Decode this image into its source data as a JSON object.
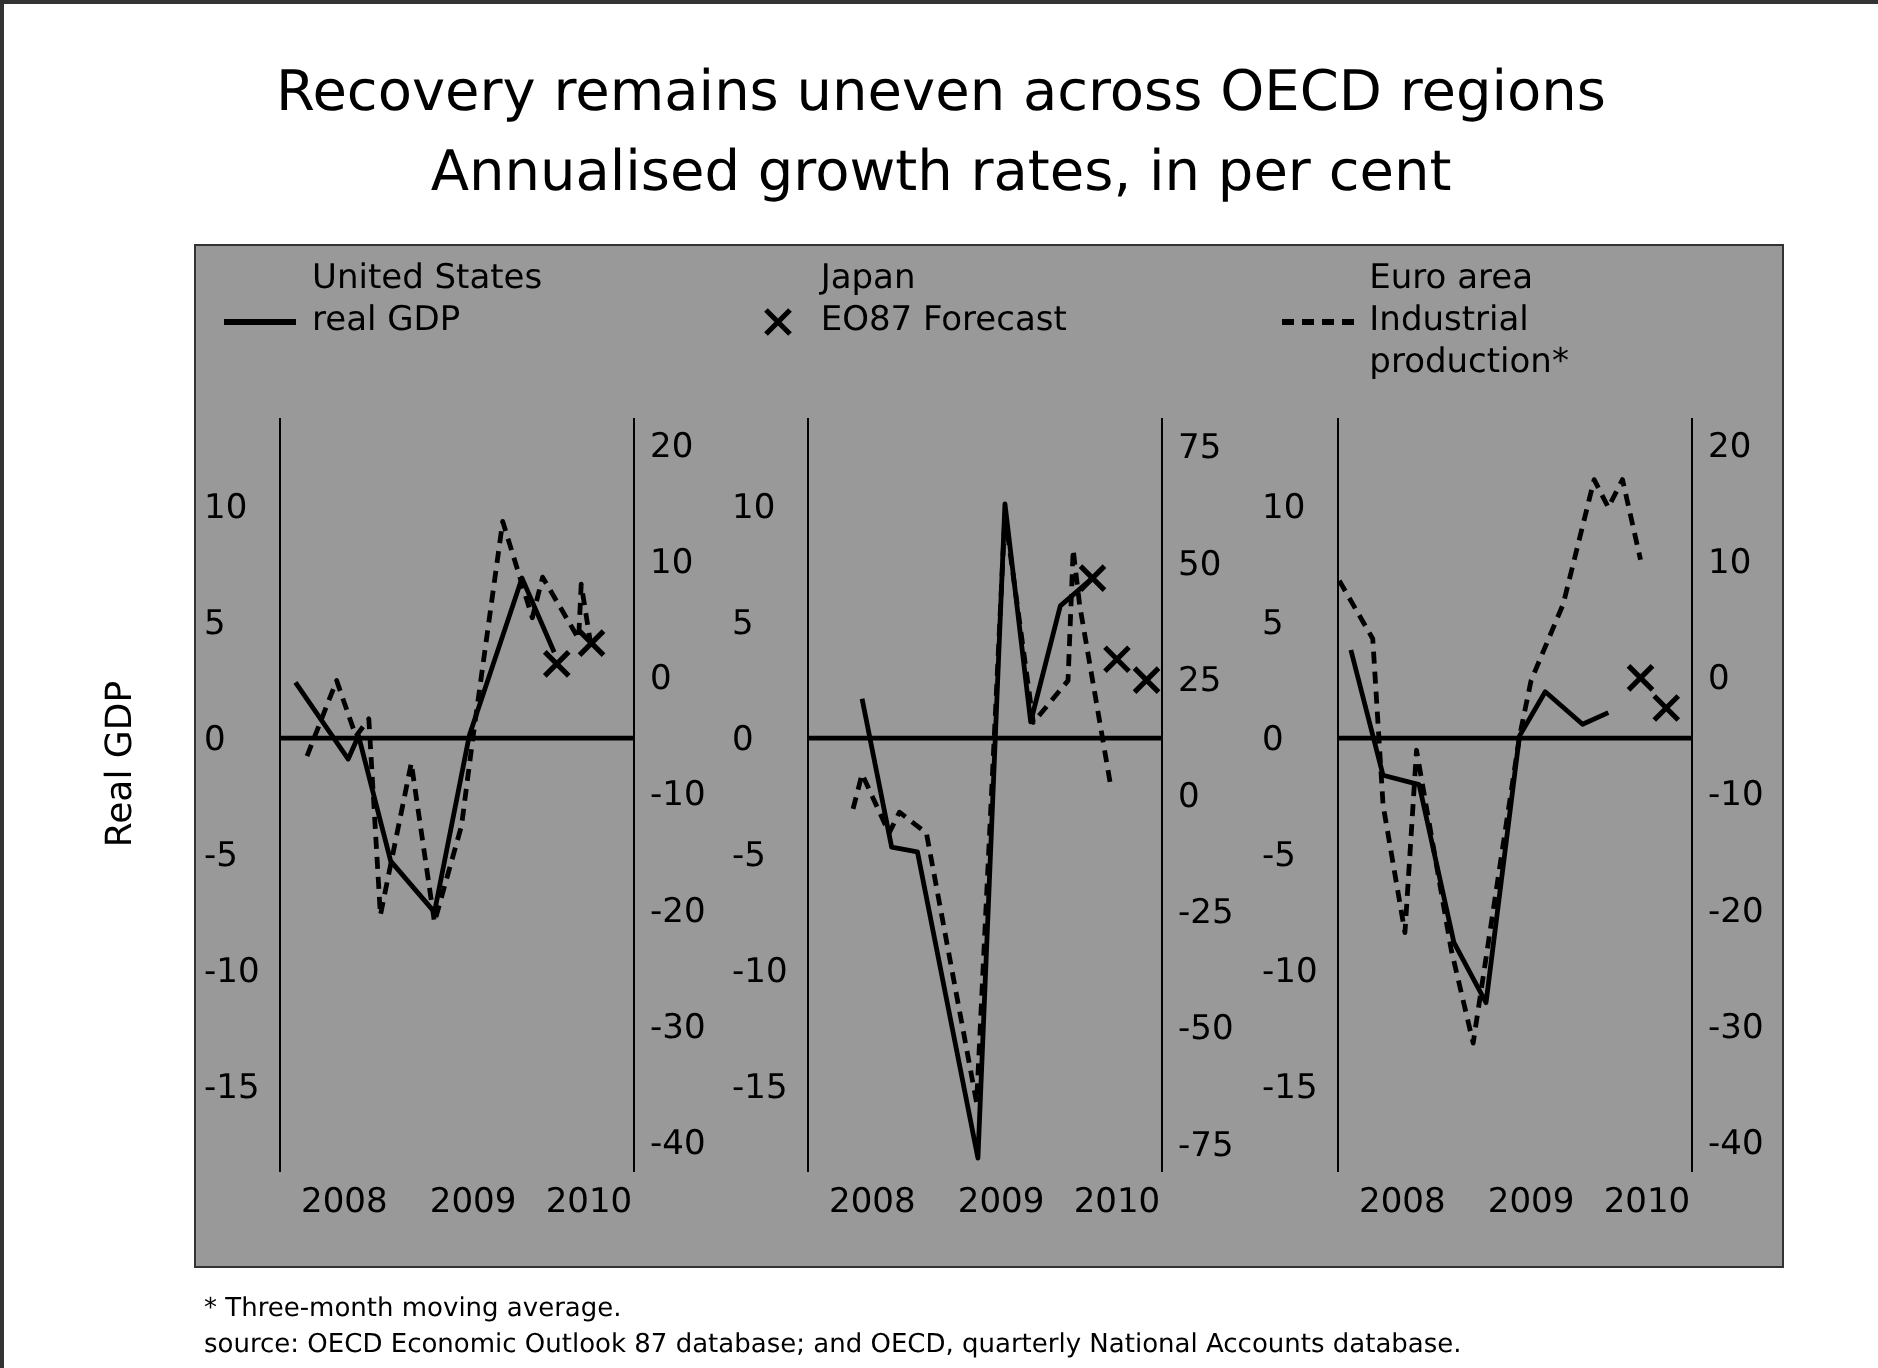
{
  "chart_data": [
    {
      "type": "line",
      "title": "Recovery remains uneven across OECD regions",
      "subtitle": "Annualised growth rates, in per cent",
      "ylabel": "Real GDP",
      "legend_title": "United States",
      "legend": "top",
      "xlim": [
        2008.0,
        2010.75
      ],
      "xticks": [
        {
          "value": 2008.5,
          "label": "2008"
        },
        {
          "value": 2009.5,
          "label": "2009"
        },
        {
          "value": 2010.4,
          "label": "2010"
        }
      ],
      "ylim": [
        -18.7,
        13.8
      ],
      "yticks": [
        10,
        5,
        0,
        -5,
        -10,
        -15
      ],
      "y2lim": [
        -42.6,
        22.3
      ],
      "y2ticks": [
        20,
        10,
        0,
        -10,
        -20,
        -30,
        -40
      ],
      "ref_lines": [
        {
          "axis": "y",
          "value": 0,
          "color": "#000000"
        }
      ],
      "annotations": [
        "* Three-month moving average.",
        "source: OECD Economic Outlook 87 database; and OECD, quarterly National Accounts database."
      ],
      "series": [
        {
          "name": "real GDP",
          "color": "#000000",
          "line_style": "solid",
          "x": [
            2008.12,
            2008.53,
            2008.61,
            2008.86,
            2009.2,
            2009.47,
            2009.88,
            2010.13
          ],
          "values": [
            2.4,
            -0.9,
            0.1,
            -5.3,
            -7.5,
            0.1,
            6.9,
            3.7
          ]
        },
        {
          "type": "scatter",
          "color": "#000000",
          "marker": "cross",
          "x": [
            2010.15,
            2010.42
          ],
          "values": [
            3.2,
            4.1
          ]
        },
        {
          "axis": "y2",
          "color": "#000000",
          "line_style": "dashed",
          "x": [
            2008.21,
            2008.44,
            2008.59,
            2008.69,
            2008.78,
            2009.02,
            2009.2,
            2009.41,
            2009.5,
            2009.73,
            2009.96,
            2010.04,
            2010.32,
            2010.34,
            2010.42
          ],
          "values": [
            -6.8,
            -0.3,
            -5.1,
            -3.6,
            -20.5,
            -7.4,
            -21.1,
            -12.8,
            -5.1,
            13.4,
            5.1,
            8.6,
            3.3,
            8.0,
            2.4
          ]
        }
      ]
    },
    {
      "type": "line",
      "legend_title": "Japan",
      "legend": "top",
      "xlim": [
        2008.0,
        2010.75
      ],
      "xticks": [
        {
          "value": 2008.5,
          "label": "2008"
        },
        {
          "value": 2009.5,
          "label": "2009"
        },
        {
          "value": 2010.4,
          "label": "2010"
        }
      ],
      "ylim": [
        -18.7,
        13.8
      ],
      "yticks": [
        10,
        5,
        0,
        -5,
        -10,
        -15
      ],
      "y2lim": [
        -81.1,
        81.1
      ],
      "y2ticks": [
        75,
        50,
        25,
        0,
        -25,
        -50,
        -75
      ],
      "ref_lines": [
        {
          "axis": "y",
          "value": 0,
          "color": "#000000"
        }
      ],
      "series": [
        {
          "color": "#000000",
          "line_style": "solid",
          "x": [
            2008.42,
            2008.65,
            2008.85,
            2009.32,
            2009.53,
            2009.73,
            2009.96,
            2010.21
          ],
          "values": [
            1.7,
            -4.7,
            -4.9,
            -18.1,
            10.1,
            0.7,
            5.7,
            6.9
          ]
        },
        {
          "name": "EO87 Forecast",
          "type": "scatter",
          "color": "#000000",
          "marker": "cross",
          "x": [
            2010.21,
            2010.4,
            2010.63
          ],
          "values": [
            6.9,
            3.4,
            2.5
          ]
        },
        {
          "axis": "y2",
          "color": "#000000",
          "line_style": "dashed",
          "x": [
            2008.35,
            2008.42,
            2008.63,
            2008.71,
            2008.92,
            2009.31,
            2009.53,
            2009.75,
            2010.02,
            2010.06,
            2010.11,
            2010.35
          ],
          "values": [
            -3.0,
            4.5,
            -8.2,
            -3.7,
            -8.2,
            -66.2,
            60.3,
            15.6,
            24.6,
            52.8,
            40.9,
            2.2
          ]
        }
      ]
    },
    {
      "type": "line",
      "legend_title": "Euro area",
      "legend": "top",
      "xlim": [
        2008.0,
        2010.75
      ],
      "xticks": [
        {
          "value": 2008.5,
          "label": "2008"
        },
        {
          "value": 2009.5,
          "label": "2009"
        },
        {
          "value": 2010.4,
          "label": "2010"
        }
      ],
      "ylim": [
        -18.7,
        13.8
      ],
      "yticks": [
        10,
        5,
        0,
        -5,
        -10,
        -15
      ],
      "y2lim": [
        -42.6,
        22.3
      ],
      "y2ticks": [
        20,
        10,
        0,
        -10,
        -20,
        -30,
        -40
      ],
      "ref_lines": [
        {
          "axis": "y",
          "value": 0,
          "color": "#000000"
        }
      ],
      "series": [
        {
          "color": "#000000",
          "line_style": "solid",
          "x": [
            2008.1,
            2008.35,
            2008.63,
            2008.9,
            2009.15,
            2009.41,
            2009.61,
            2009.9,
            2010.1
          ],
          "values": [
            3.8,
            -1.6,
            -2.0,
            -8.8,
            -11.4,
            0.1,
            2.0,
            0.6,
            1.1
          ]
        },
        {
          "type": "scatter",
          "color": "#000000",
          "marker": "cross",
          "x": [
            2010.35,
            2010.55
          ],
          "values": [
            2.6,
            1.3
          ]
        },
        {
          "name": "Industrial production*",
          "axis": "y2",
          "color": "#000000",
          "line_style": "dashed",
          "x": [
            2008.01,
            2008.27,
            2008.35,
            2008.52,
            2008.61,
            2008.88,
            2009.05,
            2009.41,
            2009.5,
            2009.75,
            2009.99,
            2010.1,
            2010.21,
            2010.35
          ],
          "values": [
            8.3,
            3.3,
            -11.0,
            -22.0,
            -6.3,
            -23.5,
            -31.5,
            -5.1,
            -0.3,
            6.3,
            17.0,
            14.6,
            17.0,
            10.1
          ]
        }
      ]
    }
  ]
}
